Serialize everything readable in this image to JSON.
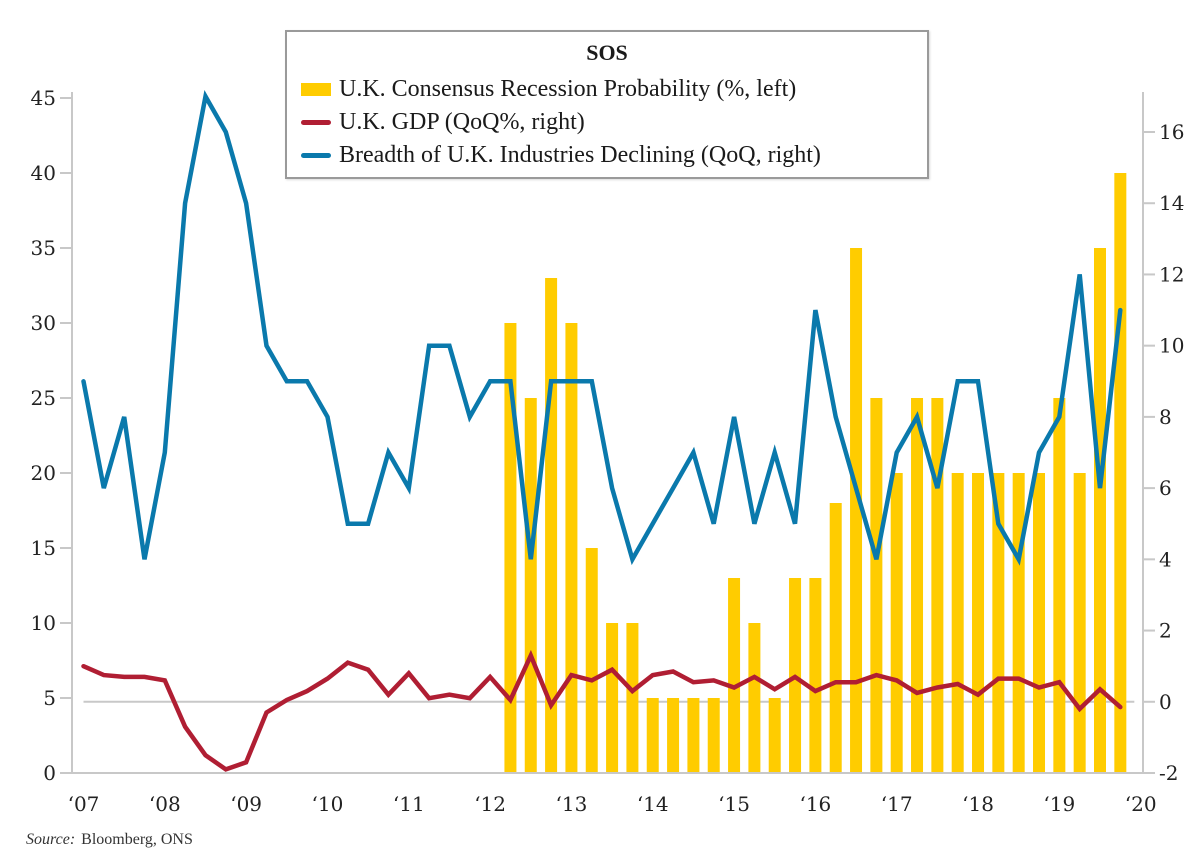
{
  "chart_data": {
    "type": "bar",
    "title": "SOS",
    "source_label": "Source:",
    "source_text": "Bloomberg, ONS",
    "colors": {
      "recession_probability": "#FFCC00",
      "gdp": "#B01E33",
      "breadth": "#0A79AC",
      "axis": "#c8c8c8",
      "zero_line": "#c8c8c8"
    },
    "x_axis": {
      "tick_labels": [
        "‘07",
        "‘08",
        "‘09",
        "‘10",
        "‘11",
        "‘12",
        "‘13",
        "‘14",
        "‘15",
        "‘16",
        "‘17",
        "‘18",
        "‘19",
        "‘20"
      ],
      "range_quarters": [
        "2007Q1",
        "2019Q4"
      ]
    },
    "left_axis": {
      "label": "%",
      "ylim": [
        0,
        45
      ],
      "ticks": [
        0,
        5,
        10,
        15,
        20,
        25,
        30,
        35,
        40,
        45
      ]
    },
    "right_axis": {
      "ylim": [
        -2,
        17
      ],
      "ticks": [
        -2,
        0,
        2,
        4,
        6,
        8,
        10,
        12,
        14,
        16
      ]
    },
    "legend": {
      "placement": "top-center",
      "entries": [
        {
          "name": "U.K. Consensus Recession Probability (%, left)",
          "kind": "bar",
          "color": "#FFCC00"
        },
        {
          "name": "U.K. GDP (QoQ%, right)",
          "kind": "line",
          "color": "#B01E33"
        },
        {
          "name": "Breadth of U.K. Industries Declining (QoQ, right)",
          "kind": "line",
          "color": "#0A79AC"
        }
      ]
    },
    "quarters": [
      "2007Q1",
      "2007Q2",
      "2007Q3",
      "2007Q4",
      "2008Q1",
      "2008Q2",
      "2008Q3",
      "2008Q4",
      "2009Q1",
      "2009Q2",
      "2009Q3",
      "2009Q4",
      "2010Q1",
      "2010Q2",
      "2010Q3",
      "2010Q4",
      "2011Q1",
      "2011Q2",
      "2011Q3",
      "2011Q4",
      "2012Q1",
      "2012Q2",
      "2012Q3",
      "2012Q4",
      "2013Q1",
      "2013Q2",
      "2013Q3",
      "2013Q4",
      "2014Q1",
      "2014Q2",
      "2014Q3",
      "2014Q4",
      "2015Q1",
      "2015Q2",
      "2015Q3",
      "2015Q4",
      "2016Q1",
      "2016Q2",
      "2016Q3",
      "2016Q4",
      "2017Q1",
      "2017Q2",
      "2017Q3",
      "2017Q4",
      "2018Q1",
      "2018Q2",
      "2018Q3",
      "2018Q4",
      "2019Q1",
      "2019Q2",
      "2019Q3",
      "2019Q4"
    ],
    "series": [
      {
        "name": "U.K. Consensus Recession Probability (%, left)",
        "type": "bar",
        "axis": "left",
        "start_quarter": "2012Q2",
        "values": [
          30,
          25,
          33,
          30,
          15,
          10,
          10,
          5,
          5,
          5,
          5,
          13,
          10,
          5,
          13,
          13,
          18,
          35,
          25,
          20,
          25,
          25,
          20,
          20,
          20,
          20,
          20,
          25,
          20,
          35,
          40
        ]
      },
      {
        "name": "U.K. GDP (QoQ%, right)",
        "type": "line",
        "axis": "right",
        "start_quarter": "2007Q1",
        "values": [
          1.0,
          0.75,
          0.7,
          0.7,
          0.6,
          -0.7,
          -1.5,
          -1.9,
          -1.7,
          -0.3,
          0.05,
          0.3,
          0.65,
          1.1,
          0.9,
          0.2,
          0.8,
          0.1,
          0.2,
          0.1,
          0.7,
          0.05,
          1.3,
          -0.1,
          0.75,
          0.6,
          0.9,
          0.3,
          0.75,
          0.85,
          0.55,
          0.6,
          0.4,
          0.7,
          0.35,
          0.7,
          0.3,
          0.55,
          0.55,
          0.75,
          0.6,
          0.25,
          0.4,
          0.5,
          0.2,
          0.65,
          0.65,
          0.4,
          0.55,
          -0.2,
          0.35,
          -0.15
        ]
      },
      {
        "name": "Breadth of U.K. Industries Declining (QoQ, right)",
        "type": "line",
        "axis": "right",
        "start_quarter": "2007Q1",
        "values": [
          9,
          6,
          8,
          4,
          7,
          14,
          17,
          16,
          14,
          10,
          9,
          9,
          8,
          5,
          5,
          7,
          6,
          10,
          10,
          8,
          9,
          9,
          4,
          9,
          9,
          9,
          6,
          4,
          5,
          6,
          7,
          5,
          8,
          5,
          7,
          5,
          11,
          8,
          6,
          4,
          7,
          8,
          6,
          9,
          9,
          5,
          4,
          7,
          8,
          12,
          6,
          11
        ]
      }
    ]
  }
}
